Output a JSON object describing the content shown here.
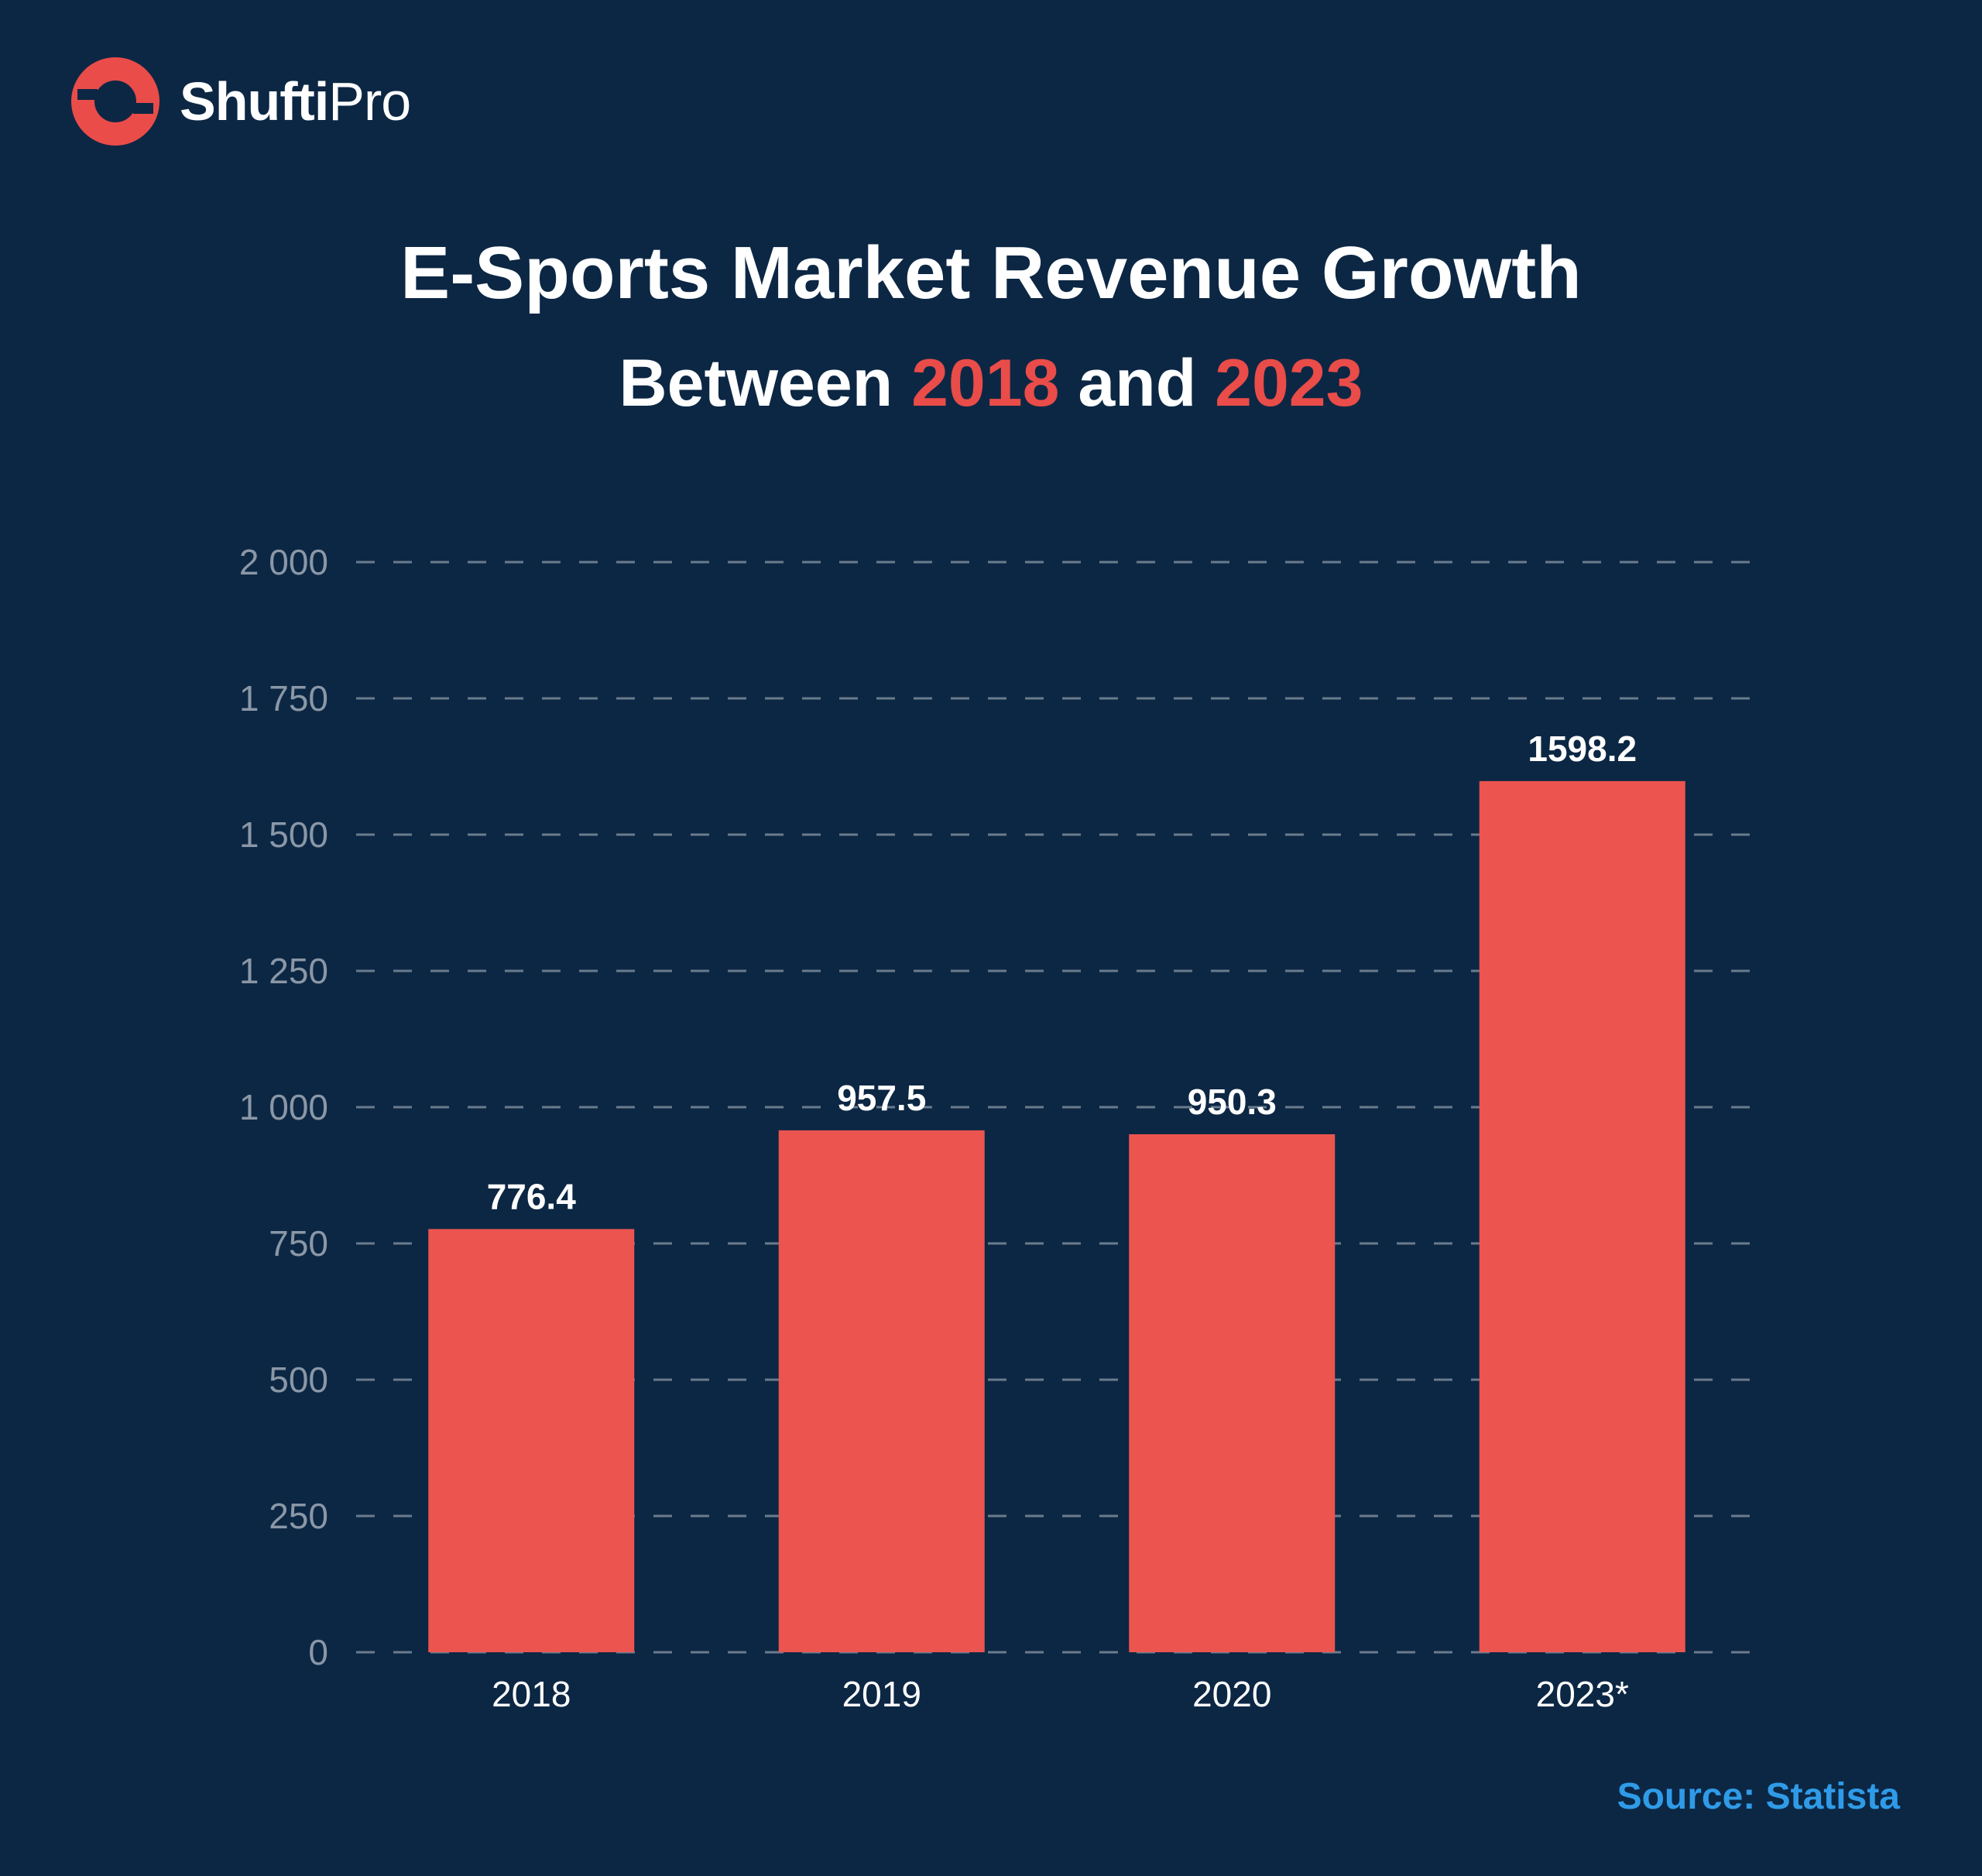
{
  "brand": {
    "name_bold": "Shufti",
    "name_light": "Pro",
    "logo_icon": "ring-logo-icon",
    "color": "#e94c49"
  },
  "heading": {
    "title": "E-Sports Market Revenue Growth",
    "subtitle_prefix": "Between",
    "subtitle_year1": "2018",
    "subtitle_mid": "and",
    "subtitle_year2": "2023"
  },
  "source": "Source: Statista",
  "colors": {
    "background": "#0c2744",
    "bar": "#ec5450",
    "accent": "#e94c49",
    "grid": "#8a97a6",
    "source": "#2f9be8"
  },
  "chart_data": {
    "type": "bar",
    "title": "E-Sports Market Revenue Growth",
    "subtitle": "Between 2018 and 2023",
    "xlabel": "",
    "ylabel": "",
    "categories": [
      "2018",
      "2019",
      "2020",
      "2023*"
    ],
    "values": [
      776.4,
      957.5,
      950.3,
      1598.2
    ],
    "data_labels": [
      "776.4",
      "957.5",
      "950.3",
      "1598.2"
    ],
    "ylim": [
      0,
      2000
    ],
    "yticks": [
      0,
      250,
      500,
      750,
      1000,
      1250,
      1500,
      1750,
      2000
    ],
    "ytick_labels": [
      "0",
      "250",
      "500",
      "750",
      "1 000",
      "1 250",
      "1 500",
      "1 750",
      "2 000"
    ],
    "grid": true,
    "grid_style": "dashed",
    "legend": "none"
  }
}
